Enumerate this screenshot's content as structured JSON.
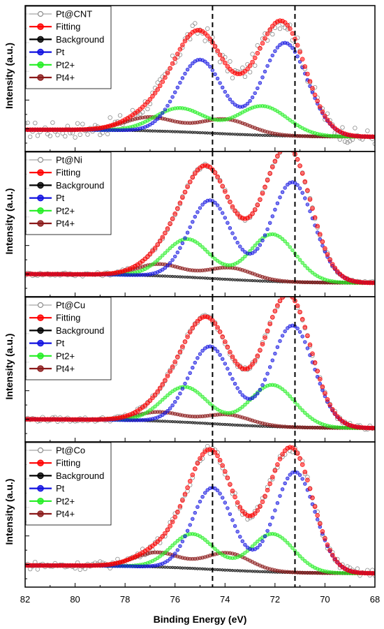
{
  "chart_data": {
    "type": "line",
    "xlabel": "Binding Energy (eV)",
    "ylabel": "Intensity (a.u.)",
    "xlim": [
      82,
      68
    ],
    "x_ticks": [
      "82",
      "80",
      "78",
      "76",
      "74",
      "72",
      "70",
      "68"
    ],
    "x_reversed": true,
    "reference_lines_eV": [
      74.5,
      71.2
    ],
    "colors": {
      "raw": "#8c8c8c",
      "Fitting": "#ff0000",
      "Background": "#000000",
      "Pt": "#1010e0",
      "Pt2+": "#22ee22",
      "Pt4+": "#8b1a1a"
    },
    "legend_labels": [
      "Fitting",
      "Background",
      "Pt",
      "Pt2+",
      "Pt4+"
    ],
    "panels": [
      {
        "sample": "Pt@CNT",
        "background": {
          "low": 0.1,
          "high": 0.9
        },
        "peaks": {
          "Pt": [
            {
              "center": 71.6,
              "height": 10.2,
              "width": 0.9
            },
            {
              "center": 75.0,
              "height": 8.0,
              "width": 0.9
            }
          ],
          "Pt2+": [
            {
              "center": 72.5,
              "height": 3.2,
              "width": 1.0
            },
            {
              "center": 75.8,
              "height": 2.6,
              "width": 1.0
            }
          ],
          "Pt4+": [
            {
              "center": 74.0,
              "height": 1.6,
              "width": 1.0
            },
            {
              "center": 77.0,
              "height": 1.5,
              "width": 1.0
            }
          ]
        },
        "raw_noise": 0.9,
        "ylim": [
          -1.5,
          14.5
        ]
      },
      {
        "sample": "Pt@Ni",
        "background": {
          "low": 0.0,
          "high": 1.0
        },
        "peaks": {
          "Pt": [
            {
              "center": 71.3,
              "height": 11.0,
              "width": 0.85
            },
            {
              "center": 74.6,
              "height": 8.6,
              "width": 0.85
            }
          ],
          "Pt2+": [
            {
              "center": 72.1,
              "height": 5.2,
              "width": 0.9
            },
            {
              "center": 75.5,
              "height": 4.2,
              "width": 0.9
            }
          ],
          "Pt4+": [
            {
              "center": 73.8,
              "height": 1.3,
              "width": 0.9
            },
            {
              "center": 76.6,
              "height": 1.3,
              "width": 0.9
            }
          ]
        },
        "raw_noise": 0.2,
        "ylim": [
          -1.5,
          14.5
        ]
      },
      {
        "sample": "Pt@Cu",
        "background": {
          "low": 0.0,
          "high": 1.0
        },
        "peaks": {
          "Pt": [
            {
              "center": 71.3,
              "height": 11.2,
              "width": 0.85
            },
            {
              "center": 74.6,
              "height": 8.5,
              "width": 0.85
            }
          ],
          "Pt2+": [
            {
              "center": 72.1,
              "height": 4.6,
              "width": 0.9
            },
            {
              "center": 75.6,
              "height": 3.9,
              "width": 0.9
            }
          ],
          "Pt4+": [
            {
              "center": 73.9,
              "height": 1.1,
              "width": 0.9
            },
            {
              "center": 76.6,
              "height": 1.0,
              "width": 0.9
            }
          ]
        },
        "raw_noise": 0.25,
        "ylim": [
          -1.5,
          14.5
        ]
      },
      {
        "sample": "Pt@Co",
        "background": {
          "low": 0.0,
          "high": 0.9
        },
        "peaks": {
          "Pt": [
            {
              "center": 71.2,
              "height": 11.1,
              "width": 0.8
            },
            {
              "center": 74.5,
              "height": 9.0,
              "width": 0.8
            }
          ],
          "Pt2+": [
            {
              "center": 72.1,
              "height": 4.2,
              "width": 0.85
            },
            {
              "center": 75.3,
              "height": 3.8,
              "width": 0.85
            }
          ],
          "Pt4+": [
            {
              "center": 73.9,
              "height": 1.9,
              "width": 0.9
            },
            {
              "center": 76.7,
              "height": 1.6,
              "width": 0.9
            }
          ]
        },
        "raw_noise": 0.45,
        "ylim": [
          -1.5,
          14.5
        ]
      }
    ]
  }
}
